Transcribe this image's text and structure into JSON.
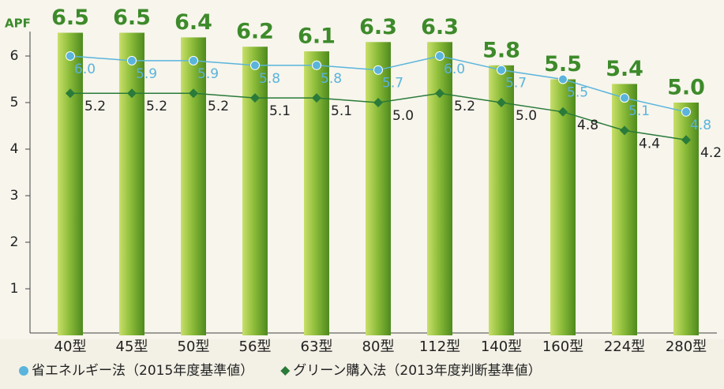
{
  "chart_data": {
    "type": "bar",
    "ylabel": "APF",
    "categories": [
      "40型",
      "45型",
      "50型",
      "56型",
      "63型",
      "80型",
      "112型",
      "140型",
      "160型",
      "224型",
      "280型"
    ],
    "series": [
      {
        "type": "bar",
        "color": "#6aa52a",
        "values": [
          6.5,
          6.5,
          6.4,
          6.2,
          6.1,
          6.3,
          6.3,
          5.8,
          5.5,
          5.4,
          5.0
        ],
        "value_labels": [
          "6.5",
          "6.5",
          "6.4",
          "6.2",
          "6.1",
          "6.3",
          "6.3",
          "5.8",
          "5.5",
          "5.4",
          "5.0"
        ]
      },
      {
        "type": "line",
        "name": "省エネルギー法（2015年度基準値）",
        "color": "#5ab4dc",
        "marker": "circle",
        "values": [
          6.0,
          5.9,
          5.9,
          5.8,
          5.8,
          5.7,
          6.0,
          5.7,
          5.5,
          5.1,
          4.8
        ],
        "value_labels": [
          "6.0",
          "5.9",
          "5.9",
          "5.8",
          "5.8",
          "5.7",
          "6.0",
          "5.7",
          "5.5",
          "5.1",
          "4.8"
        ]
      },
      {
        "type": "line",
        "name": "グリーン購入法（2013年度判断基準値）",
        "color": "#2a7a3a",
        "marker": "diamond",
        "values": [
          5.2,
          5.2,
          5.2,
          5.1,
          5.1,
          5.0,
          5.2,
          5.0,
          4.8,
          4.4,
          4.2
        ],
        "value_labels": [
          "5.2",
          "5.2",
          "5.2",
          "5.1",
          "5.1",
          "5.0",
          "5.2",
          "5.0",
          "4.8",
          "4.4",
          "4.2"
        ]
      }
    ],
    "ylim": [
      0,
      7
    ],
    "yticks": [
      1,
      2,
      3,
      4,
      5,
      6
    ],
    "grid": false
  }
}
